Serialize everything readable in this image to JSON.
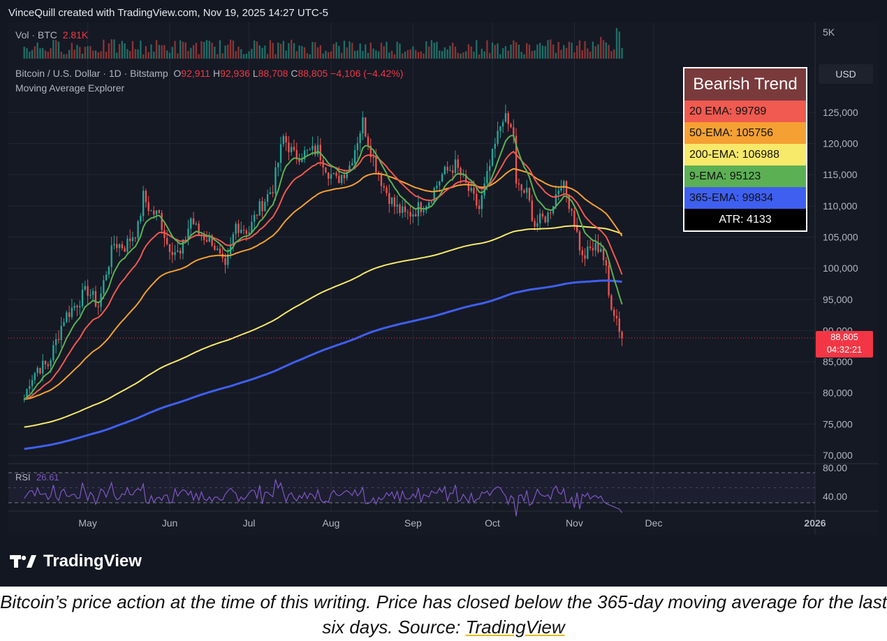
{
  "header": {
    "text": "VinceQuill created with TradingView.com, Nov 19, 2025 14:27 UTC-5"
  },
  "volume": {
    "label": "Vol · BTC",
    "value": "2.81K",
    "axis_label": "5K"
  },
  "symbol": {
    "name": "Bitcoin / U.S. Dollar · 1D · Bitstamp",
    "o_label": "O",
    "o": "92,911",
    "h_label": "H",
    "h": "92,936",
    "l_label": "L",
    "l": "88,708",
    "c_label": "C",
    "c": "88,805",
    "change": "−4,106 (−4.42%)",
    "indicator": "Moving Average Explorer"
  },
  "currency": "USD",
  "last_price": {
    "price": "88,805",
    "countdown": "04:32:21"
  },
  "trend_table": {
    "title": "Bearish Trend",
    "rows": [
      {
        "text": "20 EMA: 99789",
        "color": "#f05a50"
      },
      {
        "text": "50-EMA: 105756",
        "color": "#f5a033"
      },
      {
        "text": "200-EMA: 106988",
        "color": "#f7e96a"
      },
      {
        "text": "9-EMA: 95123",
        "color": "#5cb054"
      },
      {
        "text": "365-EMA: 99834",
        "color": "#3f5ff0"
      },
      {
        "text": "ATR: 4133",
        "color": "#000000"
      }
    ]
  },
  "rsi": {
    "label": "RSI",
    "value": "26.61",
    "upper": "80.00",
    "lower": "40.00"
  },
  "branding": "TradingView",
  "caption": {
    "text": "Bitcoin’s price action at the time of this writing. Price has closed below the 365-day moving average for the last six days. Source: ",
    "link": "TradingView"
  },
  "chart_data": {
    "type": "candlestick",
    "y_ticks": [
      "125,000",
      "120,000",
      "115,000",
      "110,000",
      "105,000",
      "100,000",
      "95,000",
      "90,000",
      "85,000",
      "80,000",
      "75,000",
      "70,000"
    ],
    "ylim": [
      70000,
      126000
    ],
    "x_ticks": [
      "May",
      "Jun",
      "Jul",
      "Aug",
      "Sep",
      "Oct",
      "Nov",
      "Dec",
      "2026"
    ],
    "close_series": [
      [
        "Apr 7",
        79000
      ],
      [
        "Apr 9",
        82000
      ],
      [
        "Apr 12",
        84000
      ],
      [
        "Apr 16",
        84500
      ],
      [
        "Apr 22",
        92000
      ],
      [
        "Apr 28",
        95000
      ],
      [
        "May 1",
        96500
      ],
      [
        "May 5",
        94000
      ],
      [
        "May 8",
        99500
      ],
      [
        "May 11",
        104000
      ],
      [
        "May 15",
        103500
      ],
      [
        "May 20",
        106500
      ],
      [
        "May 22",
        111500
      ],
      [
        "May 25",
        109000
      ],
      [
        "May 28",
        108500
      ],
      [
        "May 31",
        104000
      ],
      [
        "Jun 5",
        102000
      ],
      [
        "Jun 9",
        108000
      ],
      [
        "Jun 12",
        105500
      ],
      [
        "Jun 17",
        104500
      ],
      [
        "Jun 22",
        99500
      ],
      [
        "Jun 26",
        107000
      ],
      [
        "Jul 1",
        106000
      ],
      [
        "Jul 4",
        109000
      ],
      [
        "Jul 10",
        113000
      ],
      [
        "Jul 14",
        121000
      ],
      [
        "Jul 18",
        118000
      ],
      [
        "Jul 23",
        118500
      ],
      [
        "Jul 27",
        119000
      ],
      [
        "Jul 31",
        115500
      ],
      [
        "Aug 3",
        114000
      ],
      [
        "Aug 8",
        116500
      ],
      [
        "Aug 13",
        123500
      ],
      [
        "Aug 17",
        117500
      ],
      [
        "Aug 21",
        113000
      ],
      [
        "Aug 25",
        110000
      ],
      [
        "Aug 29",
        108500
      ],
      [
        "Sep 1",
        109000
      ],
      [
        "Sep 7",
        111000
      ],
      [
        "Sep 12",
        115000
      ],
      [
        "Sep 17",
        116500
      ],
      [
        "Sep 22",
        112500
      ],
      [
        "Sep 26",
        109500
      ],
      [
        "Oct 1",
        118000
      ],
      [
        "Oct 5",
        124500
      ],
      [
        "Oct 9",
        121500
      ],
      [
        "Oct 10",
        113000
      ],
      [
        "Oct 14",
        112000
      ],
      [
        "Oct 17",
        107000
      ],
      [
        "Oct 22",
        108500
      ],
      [
        "Oct 27",
        114000
      ],
      [
        "Oct 31",
        109500
      ],
      [
        "Nov 4",
        101500
      ],
      [
        "Nov 7",
        103000
      ],
      [
        "Nov 11",
        103500
      ],
      [
        "Nov 13",
        99500
      ],
      [
        "Nov 14",
        95500
      ],
      [
        "Nov 17",
        92000
      ],
      [
        "Nov 19",
        88805
      ]
    ],
    "series": [
      {
        "name": "20 EMA",
        "value": 99789
      },
      {
        "name": "50-EMA",
        "value": 105756
      },
      {
        "name": "200-EMA",
        "value": 106988
      },
      {
        "name": "9-EMA",
        "value": 95123
      },
      {
        "name": "365-EMA",
        "value": 99834
      }
    ],
    "rsi_range": [
      40,
      80
    ],
    "rsi_last": 26.61
  }
}
